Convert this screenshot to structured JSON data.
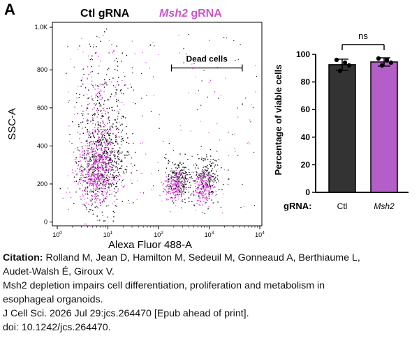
{
  "panel_label": "A",
  "legend": [
    {
      "label": "Ctl gRNA",
      "italic_part": "",
      "color": "#000000"
    },
    {
      "label": " gRNA",
      "italic_part": "Msh2",
      "color": "#cc55cc"
    }
  ],
  "chart_data": [
    {
      "type": "scatter",
      "title": "",
      "xlabel": "Alexa Fluor 488-A",
      "ylabel": "SSC-A",
      "x_scale": "log",
      "xlim": [
        0.8,
        11000
      ],
      "ylim": [
        -20,
        1050
      ],
      "x_ticks": [
        {
          "value": 1,
          "label_base": "10",
          "label_exp": "0"
        },
        {
          "value": 10,
          "label_base": "10",
          "label_exp": "1"
        },
        {
          "value": 100,
          "label_base": "10",
          "label_exp": "2"
        },
        {
          "value": 1000,
          "label_base": "10",
          "label_exp": "3"
        },
        {
          "value": 10000,
          "label_base": "10",
          "label_exp": "4"
        }
      ],
      "y_ticks": [
        {
          "value": 0,
          "label": "0"
        },
        {
          "value": 200,
          "label": "200"
        },
        {
          "value": 400,
          "label": "400"
        },
        {
          "value": 600,
          "label": "600"
        },
        {
          "value": 800,
          "label": "800"
        },
        {
          "value": 1024,
          "label": "1.0K"
        }
      ],
      "gate": {
        "label": "Dead cells",
        "x_start": 180,
        "x_end": 4500,
        "y": 810
      },
      "populations": [
        {
          "name": "Ctl gRNA",
          "color": "#111111",
          "clusters": [
            {
              "cx": 8,
              "cy": 320,
              "sx_log": 0.25,
              "sy": 130
            },
            {
              "cx": 250,
              "cy": 220,
              "sx_log": 0.12,
              "sy": 55
            },
            {
              "cx": 900,
              "cy": 230,
              "sx_log": 0.13,
              "sy": 60
            }
          ]
        },
        {
          "name": "Msh2 gRNA",
          "color": "#e040e0",
          "clusters": [
            {
              "cx": 6,
              "cy": 260,
              "sx_log": 0.2,
              "sy": 90
            },
            {
              "cx": 220,
              "cy": 190,
              "sx_log": 0.1,
              "sy": 40
            },
            {
              "cx": 750,
              "cy": 180,
              "sx_log": 0.11,
              "sy": 45
            }
          ]
        }
      ]
    },
    {
      "type": "bar",
      "title": "",
      "xlabel": "gRNA:",
      "ylabel": "Percentage of viable cells",
      "categories": [
        {
          "label": "Ctl",
          "italic": false
        },
        {
          "label": "Msh2",
          "italic": true
        }
      ],
      "values": [
        92.5,
        94.5
      ],
      "errors": [
        4,
        3
      ],
      "points": [
        [
          96,
          94,
          92,
          88
        ],
        [
          97,
          96,
          94,
          92
        ]
      ],
      "colors": [
        "#333333",
        "#b45fc8"
      ],
      "ylim": [
        0,
        100
      ],
      "y_ticks": [
        0,
        20,
        40,
        60,
        80,
        100
      ],
      "significance": "ns"
    }
  ],
  "caption": {
    "citation_label": "Citation:",
    "authors_line1": " Rolland M, Jean D, Hamilton M, Sedeuil M, Gonneaud A, Berthiaume L,",
    "authors_line2": "Audet-Walsh É, Giroux V.",
    "title_line1": "Msh2 depletion impairs cell differentiation, proliferation and metabolism in",
    "title_line2": "esophageal organoids.",
    "journal": "J Cell Sci. 2026 Jul 29:jcs.264470 [Epub ahead of print].",
    "doi": "doi: 10.1242/jcs.264470."
  }
}
